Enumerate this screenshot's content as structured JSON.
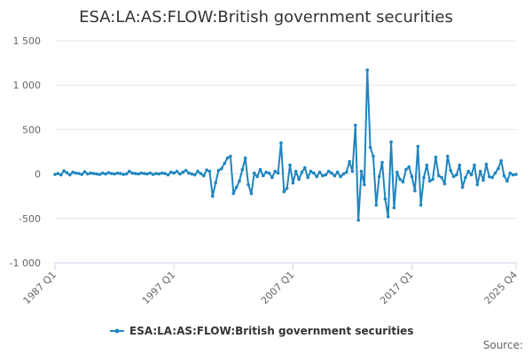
{
  "chart_data": {
    "type": "line",
    "title": "ESA:LA:AS:FLOW:British government securities",
    "xlabel": "",
    "ylabel": "",
    "ylim": [
      -1000,
      1500
    ],
    "yticks": [
      1500,
      1000,
      500,
      0,
      -500,
      -1000
    ],
    "ytick_labels": [
      "1 500",
      "1 000",
      "500",
      "0",
      "-500",
      "-1 000"
    ],
    "xtick_labels": [
      "1987 Q1",
      "1997 Q1",
      "2007 Q1",
      "2017 Q1",
      "2025 Q4"
    ],
    "xtick_indices": [
      0,
      40,
      80,
      120,
      155
    ],
    "grid": true,
    "legend_position": "bottom-center",
    "color": "#1f85c0",
    "source_label": "Source:",
    "x_start": "1987 Q1",
    "x_end": "2025 Q4",
    "series": [
      {
        "name": "ESA:LA:AS:FLOW:British government securities",
        "values": [
          -5,
          5,
          -10,
          35,
          15,
          -10,
          20,
          10,
          5,
          -5,
          25,
          0,
          10,
          5,
          0,
          -5,
          10,
          0,
          15,
          5,
          0,
          10,
          5,
          -5,
          0,
          30,
          10,
          5,
          0,
          10,
          5,
          0,
          10,
          -5,
          5,
          0,
          10,
          5,
          -10,
          20,
          10,
          30,
          0,
          20,
          40,
          10,
          0,
          -10,
          30,
          5,
          -20,
          45,
          30,
          -250,
          -100,
          40,
          60,
          120,
          180,
          200,
          -220,
          -150,
          -80,
          50,
          180,
          -120,
          -220,
          10,
          -30,
          50,
          -20,
          20,
          10,
          -40,
          30,
          10,
          350,
          -200,
          -160,
          100,
          -100,
          30,
          -60,
          20,
          70,
          -40,
          30,
          10,
          -30,
          20,
          -20,
          -10,
          30,
          10,
          -20,
          20,
          -30,
          0,
          20,
          140,
          30,
          550,
          -520,
          30,
          -120,
          1170,
          300,
          200,
          -350,
          -30,
          130,
          -280,
          -480,
          360,
          -380,
          20,
          -60,
          -90,
          50,
          80,
          -30,
          -190,
          310,
          -350,
          -40,
          100,
          -80,
          -60,
          190,
          -20,
          -40,
          -110,
          200,
          40,
          -30,
          -10,
          100,
          -150,
          -40,
          30,
          -10,
          100,
          -120,
          30,
          -70,
          110,
          -30,
          -40,
          10,
          60,
          150,
          -20,
          -80,
          10,
          -10,
          -5
        ]
      }
    ]
  }
}
